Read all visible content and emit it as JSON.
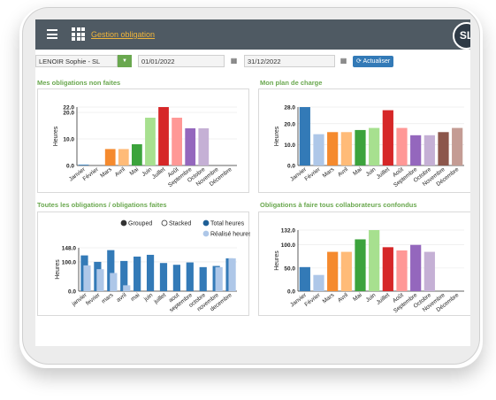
{
  "header": {
    "title": "Gestion obligation",
    "avatar_initials": "SL"
  },
  "filters": {
    "person": "LENOIR Sophie - SL",
    "date_from": "01/01/2022",
    "date_to": "31/12/2022",
    "refresh_label": "Actualiser"
  },
  "sections": {
    "top_left": "Mes obligations non faites",
    "top_right": "Mon plan de charge",
    "bottom_left": "Toutes les obligations / obligations faites",
    "bottom_right": "Obligations à faire tous collaborateurs confondus"
  },
  "legend_bl": {
    "grouped": "Grouped",
    "stacked": "Stacked",
    "total": "Total heures",
    "realise": "Réalisé heures"
  },
  "chart_data": [
    {
      "type": "bar",
      "title": "Mes obligations non faites",
      "ylabel": "Heures",
      "ylim": [
        0,
        22.0
      ],
      "yticks": [
        "22.0",
        "20.0",
        "10.0",
        "0.0"
      ],
      "categories": [
        "Janvier",
        "Février",
        "Mars",
        "Avril",
        "Mai",
        "Juin",
        "Juillet",
        "Août",
        "Septembre",
        "Octobre",
        "Novembre",
        "Décembre"
      ],
      "values": [
        0.3,
        0,
        6.2,
        6.2,
        8,
        18,
        22,
        18,
        14,
        14,
        0,
        0
      ],
      "colors": [
        "#337ab7",
        "#aec7e8",
        "#f58a2e",
        "#ffbb78",
        "#3ca33c",
        "#a7e08f",
        "#d62728",
        "#ff9896",
        "#9467bd",
        "#c5b0d5",
        "#8c564b",
        "#c49c94"
      ]
    },
    {
      "type": "bar",
      "title": "Mon plan de charge",
      "ylabel": "Heures",
      "ylim": [
        0,
        28.0
      ],
      "yticks": [
        "28.0",
        "20.0",
        "10.0",
        "0.0"
      ],
      "categories": [
        "Janvier",
        "Février",
        "Mars",
        "Avril",
        "Mai",
        "Juin",
        "Juillet",
        "Août",
        "Septembre",
        "Octobre",
        "Novembre",
        "Décembre"
      ],
      "values": [
        28,
        15,
        16,
        16,
        17,
        18,
        26.5,
        18,
        14.5,
        14.5,
        16,
        18
      ],
      "colors": [
        "#337ab7",
        "#aec7e8",
        "#f58a2e",
        "#ffbb78",
        "#3ca33c",
        "#a7e08f",
        "#d62728",
        "#ff9896",
        "#9467bd",
        "#c5b0d5",
        "#8c564b",
        "#c49c94"
      ]
    },
    {
      "type": "bar",
      "title": "Toutes les obligations / obligations faites",
      "ylabel": "Heures",
      "ylim": [
        0,
        148.0
      ],
      "yticks": [
        "148.0",
        "100.0",
        "0.0"
      ],
      "categories": [
        "janvier",
        "fevrier",
        "mars",
        "avril",
        "mai",
        "juin",
        "juillet",
        "aout",
        "septembre",
        "octobre",
        "novembre",
        "decembre"
      ],
      "series": [
        {
          "name": "Total heures",
          "values": [
            122,
            100,
            140,
            103,
            118,
            124,
            96,
            90,
            98,
            82,
            86,
            112
          ],
          "color": "#337ab7"
        },
        {
          "name": "Réalisé heures",
          "values": [
            88,
            75,
            62,
            20,
            0,
            0,
            0,
            0,
            0,
            0,
            82,
            112
          ],
          "color": "#aec7e8"
        }
      ]
    },
    {
      "type": "bar",
      "title": "Obligations à faire tous collaborateurs confondus",
      "ylabel": "Heures",
      "ylim": [
        0,
        132.0
      ],
      "yticks": [
        "132.0",
        "100.0",
        "50.0",
        "0.0"
      ],
      "categories": [
        "Janvier",
        "Février",
        "Mars",
        "Avril",
        "Mai",
        "Juin",
        "Juillet",
        "Août",
        "Septembre",
        "Octobre",
        "Novembre",
        "Décembre"
      ],
      "values": [
        52,
        35,
        85,
        85,
        112,
        132,
        95,
        88,
        100,
        85,
        0,
        0
      ],
      "colors": [
        "#337ab7",
        "#aec7e8",
        "#f58a2e",
        "#ffbb78",
        "#3ca33c",
        "#a7e08f",
        "#d62728",
        "#ff9896",
        "#9467bd",
        "#c5b0d5",
        "#8c564b",
        "#c49c94"
      ]
    }
  ]
}
